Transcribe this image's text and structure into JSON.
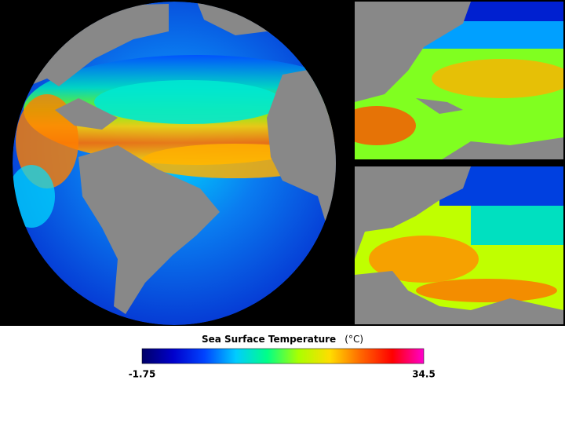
{
  "colorbar": {
    "title": "Sea Surface Temperature",
    "unit": "(°C)",
    "min": -1.75,
    "max": 34.5,
    "colors": [
      "#000066",
      "#0000cc",
      "#0044ff",
      "#00ccff",
      "#00ff88",
      "#aaff00",
      "#ffdd00",
      "#ff6600",
      "#ff0000",
      "#ff00cc"
    ]
  }
}
